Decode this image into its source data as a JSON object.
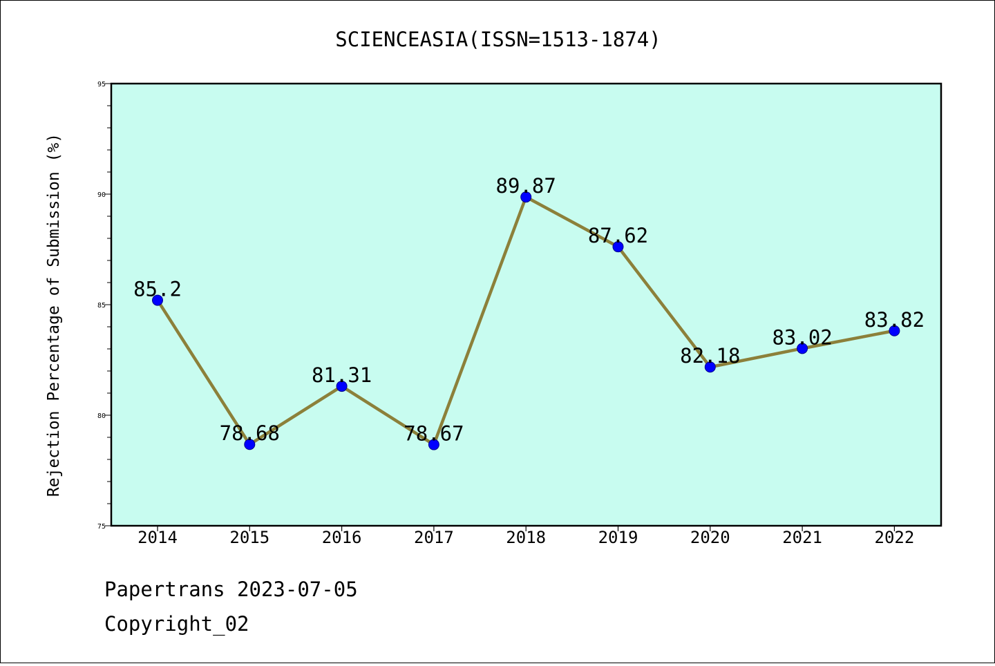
{
  "chart_data": {
    "type": "line",
    "title": "SCIENCEASIA(ISSN=1513-1874)",
    "xlabel": "",
    "ylabel": "Rejection Percentage of Submission (%)",
    "categories": [
      "2014",
      "2015",
      "2016",
      "2017",
      "2018",
      "2019",
      "2020",
      "2021",
      "2022"
    ],
    "values": [
      85.2,
      78.68,
      81.31,
      78.67,
      89.87,
      87.62,
      82.18,
      83.02,
      83.82
    ],
    "data_labels": [
      "85.2",
      "78.68",
      "81.31",
      "78.67",
      "89.87",
      "87.62",
      "82.18",
      "83.02",
      "83.82"
    ],
    "ylim": [
      75,
      95
    ],
    "yticks": [
      "75",
      "80",
      "85",
      "90",
      "95"
    ],
    "grid": false,
    "plot_background": "#c8fcf0",
    "line_color": "#8c803a",
    "marker_color": "#0000ff"
  },
  "footer": {
    "line1": "Papertrans 2023-07-05",
    "line2": "Copyright_02"
  }
}
